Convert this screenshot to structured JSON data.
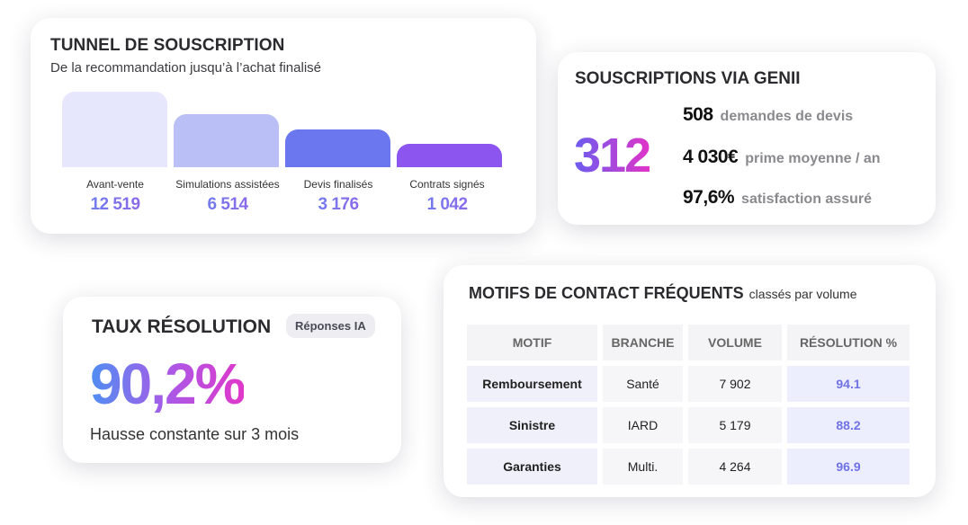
{
  "funnel": {
    "title": "TUNNEL DE SOUSCRIPTION",
    "subtitle": "De la recommandation jusqu’à l’achat finalisé",
    "stages": [
      {
        "label": "Avant-vente",
        "value": "12 519",
        "color": "#e6e7fd",
        "fill": 1.0
      },
      {
        "label": "Simulations assistées",
        "value": "6 514",
        "color": "#babff5",
        "fill": 0.7
      },
      {
        "label": "Devis finalisés",
        "value": "3 176",
        "color": "#6b77ee",
        "fill": 0.48
      },
      {
        "label": "Contrats signés",
        "value": "1 042",
        "color": "#8c55f0",
        "fill": 0.3
      }
    ]
  },
  "genii": {
    "title": "SOUSCRIPTIONS VIA GENII",
    "big": "312",
    "stats": [
      {
        "n": "508",
        "d": "demandes de devis"
      },
      {
        "n": "4 030€",
        "d": "prime moyenne / an"
      },
      {
        "n": "97,6%",
        "d": "satisfaction assuré"
      }
    ]
  },
  "taux": {
    "title": "TAUX RÉSOLUTION",
    "badge": "Réponses IA",
    "big": "90,2%",
    "foot": "Hausse constante sur 3 mois"
  },
  "motifs": {
    "title": "MOTIFS DE CONTACT FRÉQUENTS",
    "subtitle": "classés par volume",
    "headers": [
      "MOTIF",
      "BRANCHE",
      "VOLUME",
      "RÉSOLUTION %"
    ],
    "rows": [
      [
        "Remboursement",
        "Santé",
        "7 902",
        "94.1"
      ],
      [
        "Sinistre",
        "IARD",
        "5 179",
        "88.2"
      ],
      [
        "Garanties",
        "Multi.",
        "4 264",
        "96.9"
      ]
    ]
  },
  "colors": {
    "accent_blue": "#5b8def",
    "accent_purple": "#a259e8",
    "accent_pink": "#e034c8"
  }
}
